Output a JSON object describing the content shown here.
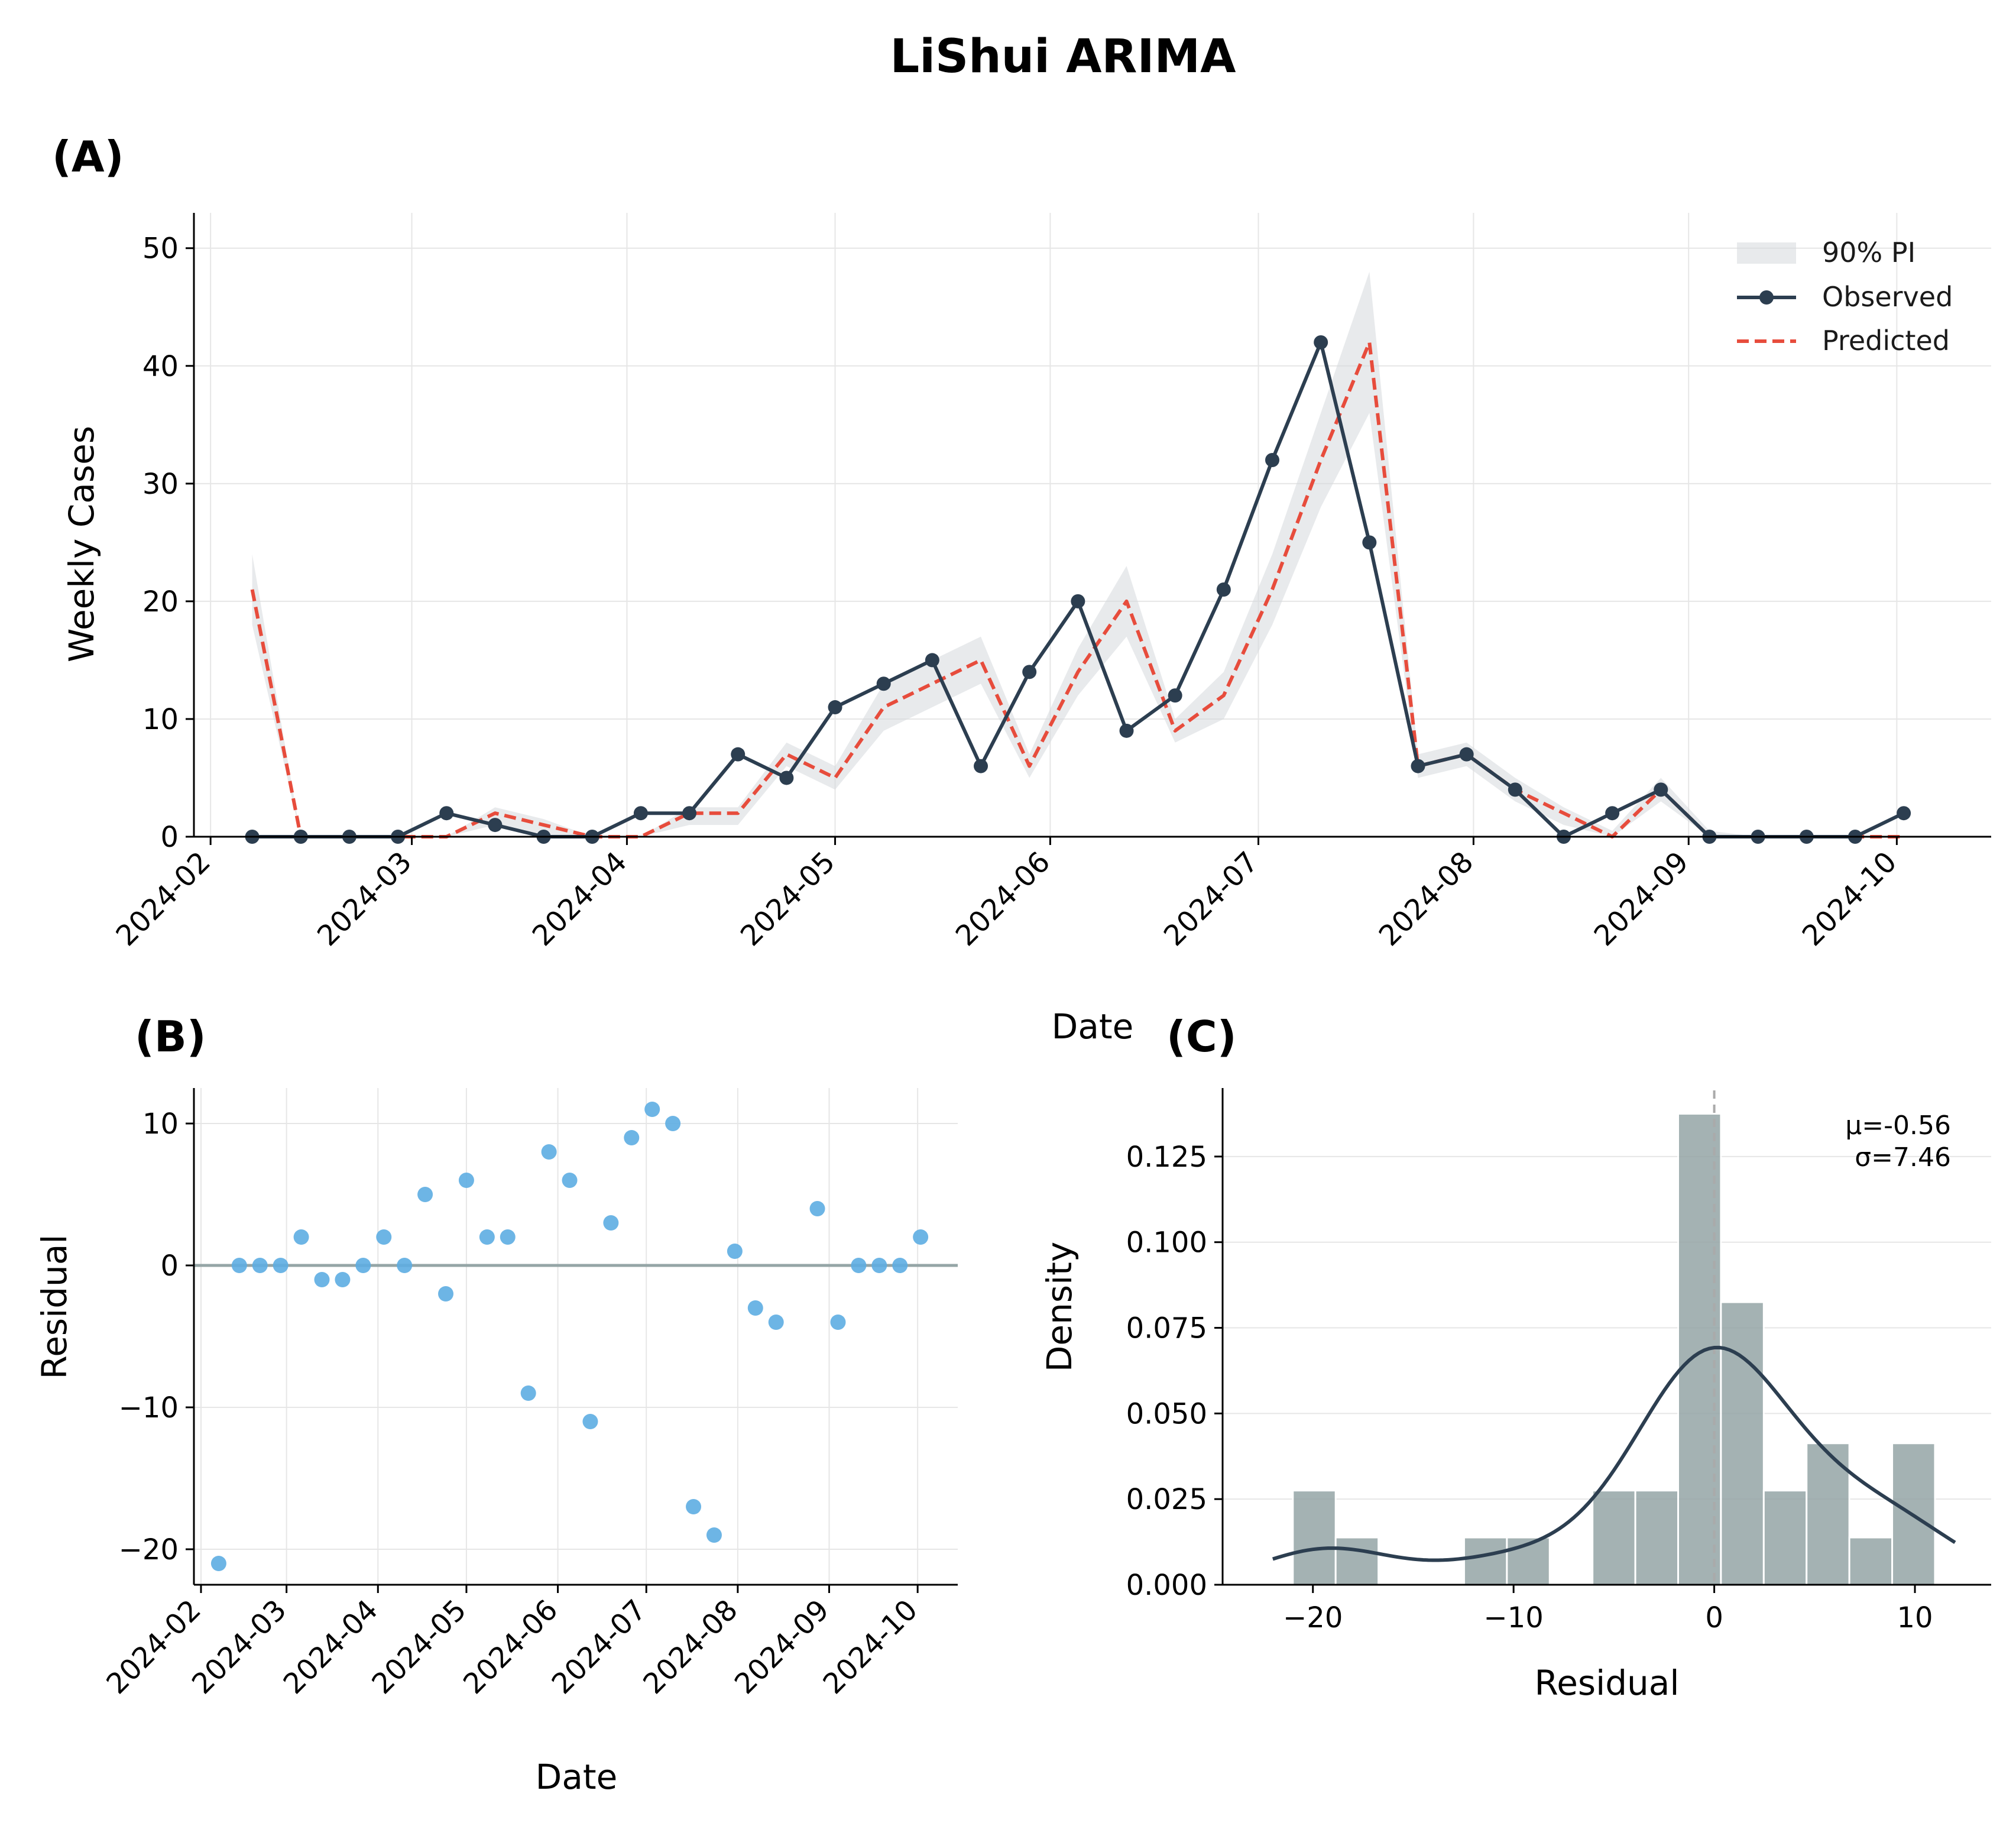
{
  "title": "LiShui ARIMA",
  "colors": {
    "observed": "#2c3e50",
    "predicted": "#e74c3c",
    "band": "#d5d8dc",
    "residual_point": "#5dade2",
    "zero_line": "#95a5a6",
    "hist_bar": "#95a5a6",
    "kde": "#2c3e50"
  },
  "chart_data": [
    {
      "panel_label": "(A)",
      "type": "line",
      "xlabel": "Date",
      "ylabel": "Weekly Cases",
      "x_ticks": [
        "2024-02",
        "2024-03",
        "2024-04",
        "2024-05",
        "2024-06",
        "2024-07",
        "2024-08",
        "2024-09",
        "2024-10"
      ],
      "y_ticks": [
        "0",
        "10",
        "20",
        "30",
        "40",
        "50"
      ],
      "ylim": [
        0,
        53
      ],
      "xlim_weeks": [
        -1.2,
        35.8
      ],
      "legend": {
        "band": "90% PI",
        "observed": "Observed",
        "predicted": "Predicted",
        "position": "top-right"
      },
      "week_start": "2024-02-07",
      "observed": [
        0,
        0,
        0,
        0,
        2,
        1,
        0,
        0,
        2,
        2,
        7,
        5,
        11,
        13,
        15,
        6,
        14,
        20,
        9,
        12,
        21,
        32,
        42,
        25,
        6,
        7,
        4,
        0,
        2,
        4,
        0,
        0,
        0,
        0,
        2
      ],
      "predicted": [
        21,
        0,
        0,
        0,
        0,
        2,
        1,
        0,
        0,
        2,
        2,
        7,
        5,
        11,
        13,
        15,
        6,
        14,
        20,
        9,
        12,
        21,
        32,
        42,
        6,
        7,
        4,
        2,
        0,
        4,
        0,
        0,
        0,
        0,
        0
      ],
      "band_lower": [
        18,
        0,
        0,
        0,
        0,
        1,
        0,
        0,
        0,
        1,
        1,
        6,
        4,
        9,
        11,
        13,
        5,
        12,
        17,
        8,
        10,
        18,
        28,
        36,
        5,
        6,
        3,
        1,
        0,
        3,
        0,
        0,
        0,
        0,
        0
      ],
      "band_upper": [
        24,
        0,
        0,
        0,
        0,
        2.5,
        1.5,
        0,
        0,
        2.5,
        2.5,
        8,
        6,
        13,
        15,
        17,
        7,
        16,
        23,
        10,
        14,
        24,
        36,
        48,
        7,
        8,
        5,
        2.5,
        0.5,
        5,
        0.5,
        0,
        0,
        0,
        0
      ]
    },
    {
      "panel_label": "(B)",
      "type": "scatter",
      "xlabel": "Date",
      "ylabel": "Residual",
      "x_ticks": [
        "2024-02",
        "2024-03",
        "2024-04",
        "2024-05",
        "2024-06",
        "2024-07",
        "2024-08",
        "2024-09",
        "2024-10"
      ],
      "y_ticks": [
        "−20",
        "−10",
        "0",
        "10"
      ],
      "y_tick_values": [
        -20,
        -10,
        0,
        10
      ],
      "ylim": [
        -22.5,
        12.5
      ],
      "residuals": [
        -21,
        0,
        0,
        0,
        2,
        -1,
        -1,
        0,
        2,
        0,
        5,
        -2,
        6,
        2,
        2,
        -9,
        8,
        6,
        -11,
        3,
        9,
        11,
        10,
        -17,
        -19,
        1,
        -3,
        -4,
        4,
        -4,
        0,
        0,
        0,
        2
      ],
      "residual_weeks": [
        0,
        1,
        2,
        3,
        4,
        5,
        6,
        7,
        8,
        9,
        10,
        11,
        12,
        13,
        14,
        15,
        16,
        17,
        18,
        19,
        20,
        21,
        22,
        23,
        24,
        25,
        26,
        27,
        29,
        30,
        31,
        32,
        33,
        34
      ]
    },
    {
      "panel_label": "(C)",
      "type": "histogram",
      "xlabel": "Residual",
      "ylabel": "Density",
      "x_ticks": [
        "−20",
        "−10",
        "0",
        "10"
      ],
      "x_tick_values": [
        -20,
        -10,
        0,
        10
      ],
      "y_ticks": [
        "0.000",
        "0.025",
        "0.050",
        "0.075",
        "0.100",
        "0.125"
      ],
      "y_tick_values": [
        0,
        0.025,
        0.05,
        0.075,
        0.1,
        0.125
      ],
      "xlim": [
        -24.5,
        13.8
      ],
      "ylim": [
        0,
        0.145
      ],
      "bin_edges": [
        -21,
        -18.867,
        -16.733,
        -14.6,
        -12.467,
        -10.333,
        -8.2,
        -6.067,
        -3.933,
        -1.8,
        0.333,
        2.467,
        4.6,
        6.733,
        8.867,
        11
      ],
      "density": [
        0.0275,
        0.0138,
        0,
        0,
        0.0138,
        0.0138,
        0,
        0.0275,
        0.0275,
        0.1375,
        0.0825,
        0.0275,
        0.0413,
        0.0138,
        0.0413
      ],
      "mean": -0.56,
      "std": 7.46,
      "stats_mu": "μ=-0.56",
      "stats_sigma": "σ=7.46"
    }
  ]
}
